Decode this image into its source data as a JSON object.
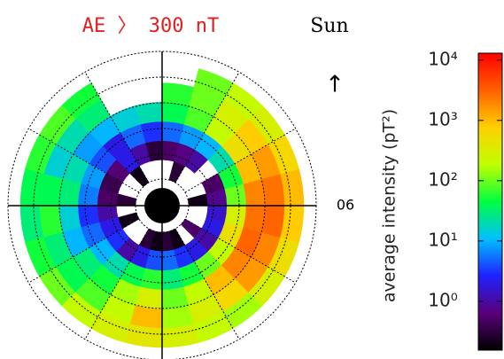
{
  "chart_data": {
    "type": "polar_heatmap",
    "title": "AE 〉 300 nT",
    "title_color": "#e02020",
    "sun_label": "Sun",
    "sun_arrow": "↑",
    "dawn_label": "06",
    "colorbar_label": "average intensity (pT²)",
    "log_scale": true,
    "ylim": [
      0.155,
      13000
    ],
    "yticks": [
      {
        "value": 1,
        "label": "10⁰"
      },
      {
        "value": 10,
        "label": "10¹"
      },
      {
        "value": 100,
        "label": "10²"
      },
      {
        "value": 1000,
        "label": "10³"
      },
      {
        "value": 10000,
        "label": "10⁴"
      }
    ],
    "colormap": [
      "#000000",
      "#5a007a",
      "#2020ff",
      "#00c0ff",
      "#00ff40",
      "#c0ff00",
      "#ffd000",
      "#ff6000",
      "#ff0000"
    ],
    "values": [
      [
        0.3,
        0.2,
        null,
        0.5,
        null,
        null,
        0.2,
        null,
        null,
        null,
        0.3,
        null,
        null,
        null,
        0.2,
        null,
        null,
        0.3,
        null,
        0.2,
        null,
        null,
        0.3,
        0.2
      ],
      [
        5,
        3,
        2,
        1,
        2,
        1.5,
        0.8,
        0.5,
        null,
        1,
        0.7,
        0.5,
        0.3,
        1,
        2,
        0.6,
        0.4,
        0.5,
        1,
        2,
        3,
        1,
        2,
        4
      ],
      [
        30,
        50,
        100,
        200,
        500,
        300,
        100,
        50,
        20,
        10,
        8,
        5,
        3,
        5,
        2,
        4,
        8,
        6,
        3,
        5,
        10,
        20,
        40,
        60
      ],
      [
        100,
        200,
        1000,
        2000,
        3000,
        2500,
        2000,
        1000,
        500,
        200,
        80,
        40,
        20,
        15,
        10,
        8,
        20,
        30,
        15,
        10,
        30,
        50,
        150,
        300
      ],
      [
        150,
        300,
        600,
        1500,
        2000,
        3000,
        2500,
        1500,
        800,
        300,
        100,
        60,
        null,
        null,
        30,
        20,
        15,
        40,
        60,
        30,
        40,
        80,
        200,
        1000
      ],
      [
        300,
        200,
        150,
        300,
        500,
        800,
        1000,
        600,
        300,
        200,
        100,
        null,
        null,
        null,
        50,
        80,
        60,
        40,
        30,
        50,
        100,
        200,
        300,
        400
      ]
    ]
  }
}
